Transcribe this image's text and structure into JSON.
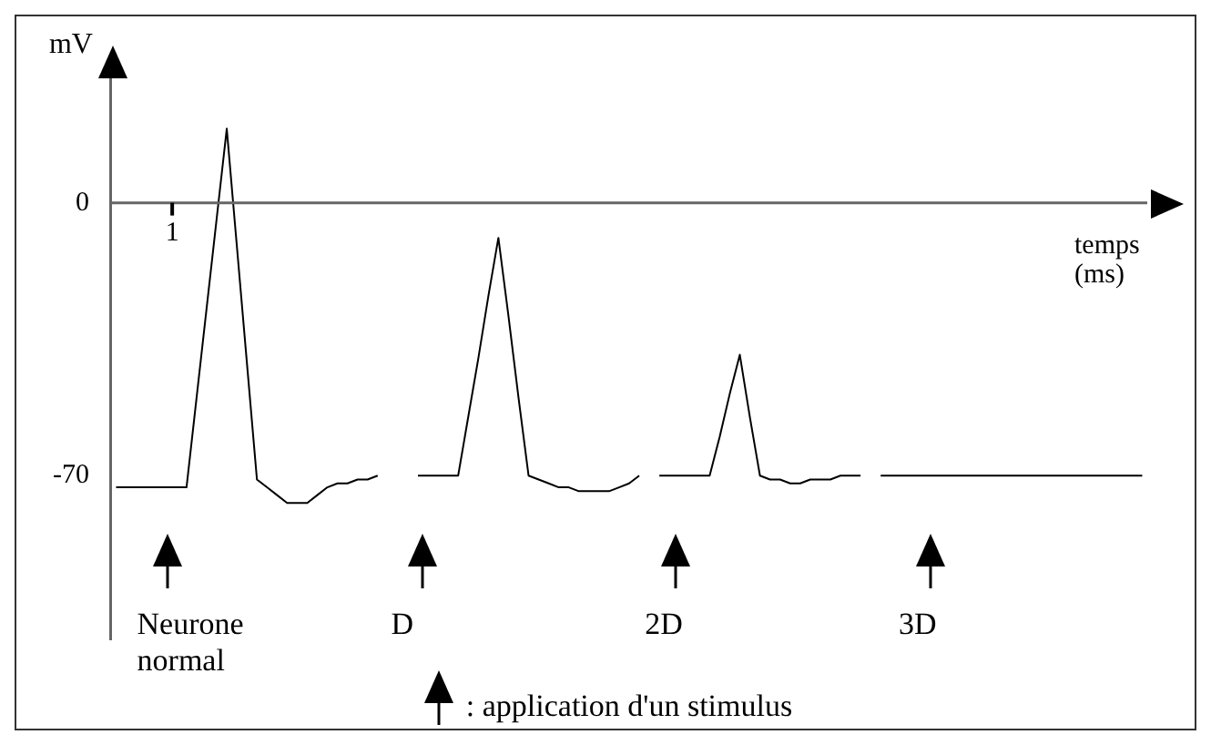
{
  "chart_data": {
    "type": "line",
    "xlabel": "temps (ms)",
    "ylabel": "mV",
    "ylim": [
      -112,
      38
    ],
    "yticks": [
      0,
      -70
    ],
    "grid": false,
    "legend": false,
    "ref_lines": [
      {
        "axis": "y",
        "value": 0,
        "color": "#666666"
      }
    ],
    "marker": "none",
    "categories": [
      null,
      null,
      null,
      null,
      null,
      null,
      null,
      null,
      null,
      null,
      null,
      null,
      null,
      null,
      null,
      null,
      null,
      null,
      null,
      null,
      null,
      null,
      null,
      null,
      null,
      null,
      null,
      null,
      null,
      null,
      null,
      null,
      null,
      null,
      null,
      null,
      null,
      null,
      null,
      null,
      null,
      null,
      null,
      null,
      null,
      null,
      null,
      null,
      null,
      null,
      null,
      null,
      null,
      null,
      null,
      null,
      null,
      null,
      null,
      null,
      null,
      null,
      null,
      null,
      null,
      null,
      null,
      null,
      null,
      null,
      null,
      null,
      null,
      null,
      null,
      null,
      null,
      null,
      null,
      null,
      null,
      null,
      null,
      null,
      null,
      null,
      null,
      null,
      null,
      null,
      null,
      null,
      null,
      null,
      null,
      null,
      null,
      null,
      null,
      null,
      null,
      null,
      null
    ],
    "series": [
      {
        "color": "#000000",
        "values": [
          -73,
          -73,
          -73,
          -73,
          -73,
          -73,
          -73,
          -73,
          -50,
          -27,
          -4,
          19,
          -11,
          -41,
          -71,
          -73,
          -75,
          -77,
          -77,
          -77,
          -75,
          -73,
          -72,
          -72,
          -71,
          -71,
          -70,
          null,
          null,
          null,
          -70,
          -70,
          -70,
          -70,
          -70,
          -55,
          -40,
          -24,
          -9,
          -29,
          -50,
          -70,
          -71,
          -72,
          -73,
          -73,
          -74,
          -74,
          -74,
          -74,
          -73,
          -72,
          -70,
          null,
          -70,
          -70,
          -70,
          -70,
          -70,
          -70,
          -60,
          -49,
          -39,
          -55,
          -70,
          -71,
          -71,
          -72,
          -72,
          -71,
          -71,
          -71,
          -70,
          -70,
          -70,
          null,
          -70,
          -70,
          -70,
          -70,
          -70,
          -70,
          -70,
          -70,
          -70,
          -70,
          -70,
          -70,
          -70,
          -70,
          -70,
          -70,
          -70,
          -70,
          -70,
          -70,
          -70,
          -70,
          -70,
          -70,
          -70,
          -70,
          -70
        ]
      }
    ],
    "annotations": [
      "1",
      "Neurone normal",
      "D",
      "2D",
      "3D",
      ": application d'un stimulus"
    ]
  }
}
